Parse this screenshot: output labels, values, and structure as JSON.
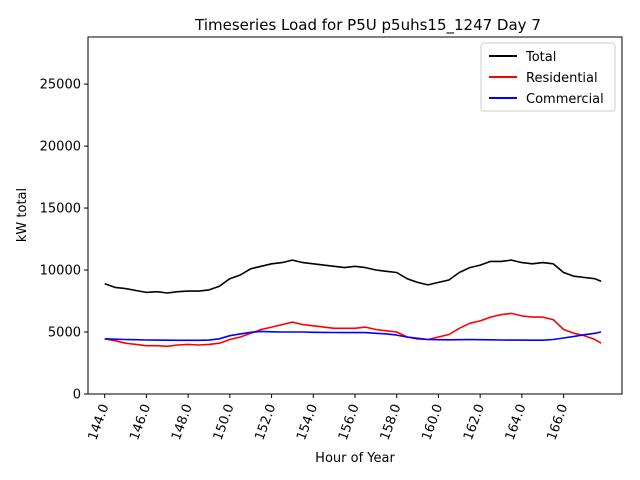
{
  "chart_data": {
    "type": "line",
    "title": "Timeseries Load for P5U p5uhs15_1247  Day 7",
    "xlabel": "Hour of Year",
    "ylabel": "kW total",
    "xlim": [
      143.2,
      168.8
    ],
    "ylim": [
      0,
      28800
    ],
    "xticks": [
      144,
      146,
      148,
      150,
      152,
      154,
      156,
      158,
      160,
      162,
      164,
      166
    ],
    "xtick_labels": [
      "144.0",
      "146.0",
      "148.0",
      "150.0",
      "152.0",
      "154.0",
      "156.0",
      "158.0",
      "160.0",
      "162.0",
      "164.0",
      "166.0"
    ],
    "yticks": [
      0,
      5000,
      10000,
      15000,
      20000,
      25000
    ],
    "ytick_labels": [
      "0",
      "5000",
      "10000",
      "15000",
      "20000",
      "25000"
    ],
    "legend_position": "top-right",
    "series": [
      {
        "name": "Total",
        "color": "#000000",
        "x": [
          144,
          144.5,
          145,
          145.5,
          146,
          146.5,
          147,
          147.5,
          148,
          148.5,
          149,
          149.5,
          150,
          150.5,
          151,
          151.5,
          152,
          152.5,
          153,
          153.5,
          154,
          154.5,
          155,
          155.5,
          156,
          156.5,
          157,
          157.5,
          158,
          158.5,
          159,
          159.5,
          160,
          160.5,
          161,
          161.5,
          162,
          162.5,
          163,
          163.5,
          164,
          164.5,
          165,
          165.5,
          166,
          166.5,
          167,
          167.5,
          167.8
        ],
        "values": [
          8900,
          8600,
          8500,
          8350,
          8200,
          8250,
          8150,
          8250,
          8300,
          8300,
          8400,
          8700,
          9300,
          9600,
          10100,
          10300,
          10500,
          10600,
          10800,
          10600,
          10500,
          10400,
          10300,
          10200,
          10300,
          10200,
          10000,
          9900,
          9800,
          9300,
          9000,
          8800,
          9000,
          9200,
          9800,
          10200,
          10400,
          10700,
          10700,
          10800,
          10600,
          10500,
          10600,
          10500,
          9800,
          9500,
          9400,
          9300,
          9100
        ]
      },
      {
        "name": "Residential",
        "color": "#ff0000",
        "x": [
          144,
          144.5,
          145,
          145.5,
          146,
          146.5,
          147,
          147.5,
          148,
          148.5,
          149,
          149.5,
          150,
          150.5,
          151,
          151.5,
          152,
          152.5,
          153,
          153.5,
          154,
          154.5,
          155,
          155.5,
          156,
          156.5,
          157,
          157.5,
          158,
          158.5,
          159,
          159.5,
          160,
          160.5,
          161,
          161.5,
          162,
          162.5,
          163,
          163.5,
          164,
          164.5,
          165,
          165.5,
          166,
          166.5,
          167,
          167.5,
          167.8
        ],
        "values": [
          4450,
          4300,
          4100,
          4000,
          3900,
          3900,
          3850,
          3950,
          4000,
          3950,
          4000,
          4100,
          4400,
          4600,
          4900,
          5200,
          5400,
          5600,
          5800,
          5600,
          5500,
          5400,
          5300,
          5300,
          5300,
          5400,
          5200,
          5100,
          5000,
          4600,
          4500,
          4400,
          4600,
          4800,
          5300,
          5700,
          5900,
          6200,
          6400,
          6500,
          6300,
          6200,
          6200,
          6000,
          5200,
          4900,
          4700,
          4400,
          4100
        ]
      },
      {
        "name": "Commercial",
        "color": "#0000ff",
        "x": [
          144,
          144.5,
          145,
          145.5,
          146,
          146.5,
          147,
          147.5,
          148,
          148.5,
          149,
          149.5,
          150,
          150.5,
          151,
          151.5,
          152,
          152.5,
          153,
          153.5,
          154,
          154.5,
          155,
          155.5,
          156,
          156.5,
          157,
          157.5,
          158,
          158.5,
          159,
          159.5,
          160,
          160.5,
          161,
          161.5,
          162,
          162.5,
          163,
          163.5,
          164,
          164.5,
          165,
          165.5,
          166,
          166.5,
          167,
          167.5,
          167.8
        ],
        "values": [
          4450,
          4420,
          4400,
          4380,
          4360,
          4350,
          4340,
          4330,
          4330,
          4330,
          4350,
          4450,
          4700,
          4850,
          4980,
          5050,
          5020,
          5000,
          5000,
          5000,
          4980,
          4970,
          4960,
          4950,
          4950,
          4950,
          4900,
          4850,
          4750,
          4600,
          4450,
          4400,
          4380,
          4370,
          4380,
          4390,
          4380,
          4370,
          4360,
          4350,
          4350,
          4340,
          4340,
          4400,
          4520,
          4650,
          4780,
          4900,
          5000
        ]
      }
    ]
  }
}
